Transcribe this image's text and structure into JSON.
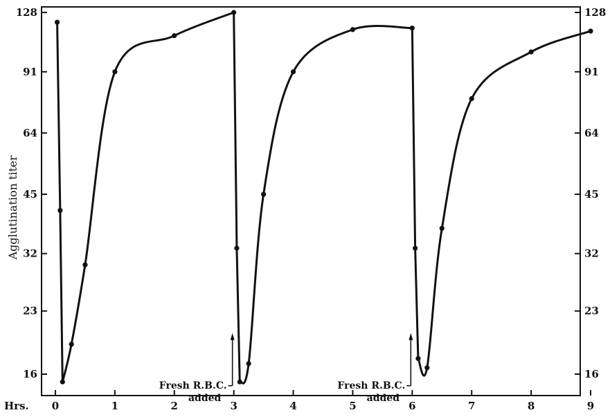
{
  "chart_data": {
    "type": "line",
    "title": "",
    "xlabel": "Hrs.",
    "ylabel": "Agglutination titer",
    "y_scale": "log2",
    "xlim": [
      -0.2,
      9.0
    ],
    "ylim": [
      13.5,
      128
    ],
    "x_ticks": [
      0,
      1,
      2,
      3,
      4,
      5,
      6,
      7,
      8,
      9
    ],
    "x_tick_labels": [
      "0",
      "1",
      "2",
      "3",
      "4",
      "5",
      "6",
      "7",
      "8",
      "9"
    ],
    "y_ticks": [
      16,
      23,
      32,
      45,
      64,
      91,
      128
    ],
    "y_tick_labels": [
      "16",
      "23",
      "32",
      "45",
      "64",
      "91",
      "128"
    ],
    "grid": false,
    "series": [
      {
        "points": [
          {
            "x": 0.03,
            "y": 121
          },
          {
            "x": 0.08,
            "y": 41
          },
          {
            "x": 0.12,
            "y": 15.3
          },
          {
            "x": 0.27,
            "y": 19
          },
          {
            "x": 0.5,
            "y": 30
          },
          {
            "x": 1.0,
            "y": 91
          },
          {
            "x": 2.0,
            "y": 112
          },
          {
            "x": 3.0,
            "y": 128
          },
          {
            "x": 3.05,
            "y": 33
          },
          {
            "x": 3.1,
            "y": 15.3
          },
          {
            "x": 3.25,
            "y": 17
          },
          {
            "x": 3.5,
            "y": 45
          },
          {
            "x": 4.0,
            "y": 91
          },
          {
            "x": 5.0,
            "y": 116
          },
          {
            "x": 6.0,
            "y": 117
          },
          {
            "x": 6.05,
            "y": 33
          },
          {
            "x": 6.1,
            "y": 17.5
          },
          {
            "x": 6.25,
            "y": 16.6
          },
          {
            "x": 6.5,
            "y": 37
          },
          {
            "x": 7.0,
            "y": 78
          },
          {
            "x": 8.0,
            "y": 102
          },
          {
            "x": 9.0,
            "y": 115
          }
        ]
      }
    ],
    "annotations": [
      {
        "line1": "Fresh R.B.C.",
        "line2": "added",
        "x": 3.0,
        "y": 19
      },
      {
        "line1": "Fresh R.B.C.",
        "line2": "added",
        "x": 6.0,
        "y": 19
      }
    ]
  }
}
